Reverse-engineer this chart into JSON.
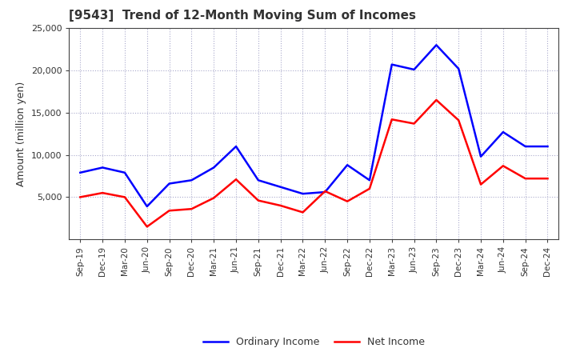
{
  "title": "[9543]  Trend of 12-Month Moving Sum of Incomes",
  "ylabel": "Amount (million yen)",
  "x_labels": [
    "Sep-19",
    "Dec-19",
    "Mar-20",
    "Jun-20",
    "Sep-20",
    "Dec-20",
    "Mar-21",
    "Jun-21",
    "Sep-21",
    "Dec-21",
    "Mar-22",
    "Jun-22",
    "Sep-22",
    "Dec-22",
    "Mar-23",
    "Jun-23",
    "Sep-23",
    "Dec-23",
    "Mar-24",
    "Jun-24",
    "Sep-24",
    "Dec-24"
  ],
  "ordinary_income": [
    7900,
    8500,
    7900,
    3900,
    6600,
    7000,
    8500,
    11000,
    7000,
    6200,
    5400,
    5600,
    8800,
    7000,
    20700,
    20100,
    23000,
    20200,
    9800,
    12700,
    11000,
    11000
  ],
  "net_income": [
    5000,
    5500,
    5000,
    1500,
    3400,
    3600,
    4900,
    7100,
    4600,
    4000,
    3200,
    5700,
    4500,
    6000,
    14200,
    13700,
    16500,
    14100,
    6500,
    8700,
    7200,
    7200
  ],
  "ordinary_income_color": "#0000FF",
  "net_income_color": "#FF0000",
  "ylim_min": 0,
  "ylim_max": 25000,
  "yticks": [
    5000,
    10000,
    15000,
    20000,
    25000
  ],
  "background_color": "#FFFFFF",
  "plot_bg_color": "#FFFFFF",
  "grid_color": "#AAAACC",
  "title_color": "#333333",
  "legend_labels": [
    "Ordinary Income",
    "Net Income"
  ],
  "spine_color": "#444444",
  "tick_label_color": "#333333"
}
